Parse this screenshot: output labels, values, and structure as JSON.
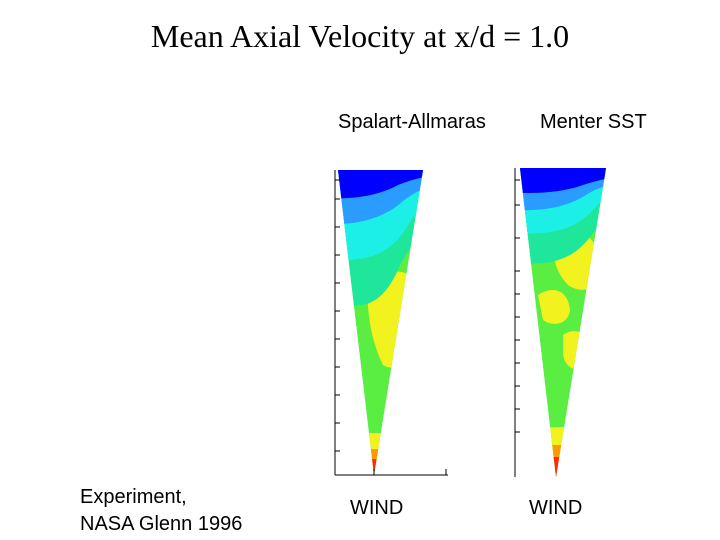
{
  "slide": {
    "title": "Mean Axial Velocity at x/d = 1.0",
    "left_caption_line1": "Experiment,",
    "left_caption_line2": "NASA Glenn 1996"
  },
  "panels": [
    {
      "model_label": "Spalart-Allmaras",
      "code_label": "WIND"
    },
    {
      "model_label": "Menter SST",
      "code_label": "WIND"
    }
  ],
  "colors": {
    "blue": "#0000ff",
    "light_blue": "#2a9bff",
    "cyan": "#1cf0e6",
    "green": "#1ee69a",
    "lime": "#66ee33",
    "yellow": "#f2f21e",
    "orange": "#ff9b00",
    "red": "#ff2a00",
    "axis": "#000000"
  }
}
